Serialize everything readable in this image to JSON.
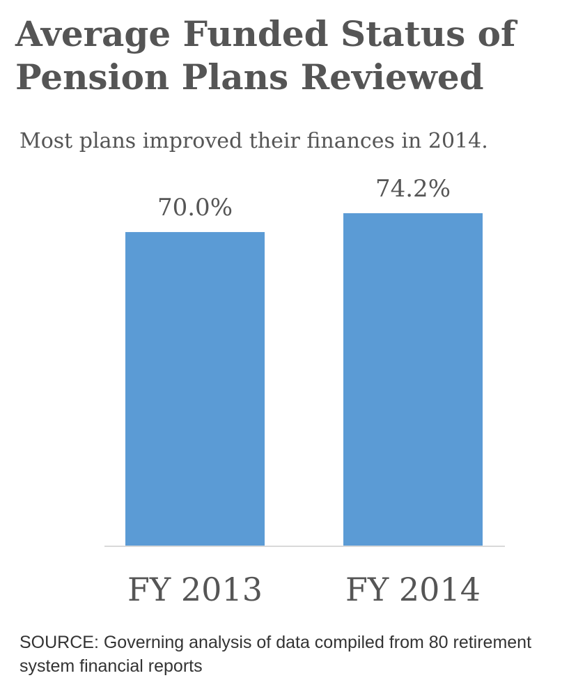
{
  "title": "Average Funded Status of Pension Plans Reviewed",
  "subtitle": "Most plans improved their finances in 2014.",
  "source": "SOURCE: Governing analysis of data compiled from 80 retirement system financial reports",
  "colors": {
    "bar": "#5b9bd5",
    "axis": "#d9d9d9",
    "text": "#555555"
  },
  "chart_data": {
    "type": "bar",
    "categories": [
      "FY 2013",
      "FY 2014"
    ],
    "values": [
      70.0,
      74.2
    ],
    "data_labels": [
      "70.0%",
      "74.2%"
    ],
    "title": "Average Funded Status of Pension Plans Reviewed",
    "subtitle": "Most plans improved their finances in 2014.",
    "xlabel": "",
    "ylabel": "",
    "ylim": [
      0,
      74.2
    ],
    "grid": false,
    "legend": "none"
  }
}
